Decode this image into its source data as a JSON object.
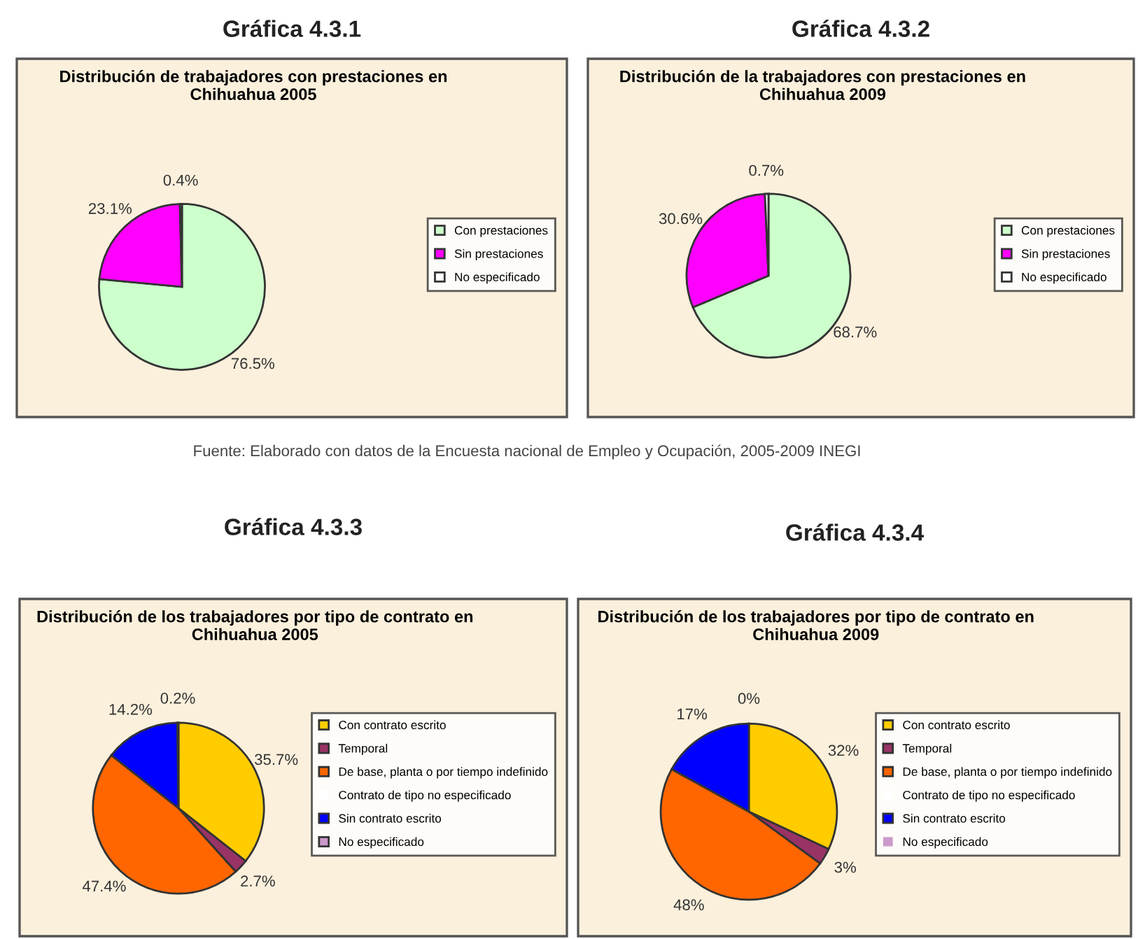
{
  "chart_data": [
    {
      "type": "pie",
      "title": "Gráfica 4.3.1",
      "subtitle": "Distribución de trabajadores con prestaciones en Chihuahua 2005",
      "categories": [
        "Con prestaciones",
        "Sin prestaciones",
        "No especificado"
      ],
      "values": [
        76.5,
        23.1,
        0.4
      ],
      "colors": [
        "#ccffcc",
        "#ff00ff",
        "#ffffff"
      ],
      "value_labels": [
        "76.5%",
        "23.1%",
        "0.4%"
      ],
      "legend": "right",
      "annotations": [
        "Fuente: Elaborado con datos de la Encuesta nacional de Empleo y Ocupación, 2005-2009 INEGI"
      ]
    },
    {
      "type": "pie",
      "title": "Gráfica 4.3.2",
      "subtitle": "Distribución de la trabajadores con prestaciones en Chihuahua 2009",
      "categories": [
        "Con prestaciones",
        "Sin prestaciones",
        "No especificado"
      ],
      "values": [
        68.7,
        30.6,
        0.7
      ],
      "colors": [
        "#ccffcc",
        "#ff00ff",
        "#ffffff"
      ],
      "value_labels": [
        "68.7%",
        "30.6%",
        "0.7%"
      ],
      "legend": "right"
    },
    {
      "type": "pie",
      "title": "Gráfica 4.3.3",
      "subtitle": "Distribución de los trabajadores por tipo de contrato en Chihuahua 2005",
      "categories": [
        "Con contrato escrito",
        "Temporal",
        "De base, planta o por tiempo indefinido",
        "Contrato de tipo no especificado",
        "Sin contrato escrito",
        "No especificado"
      ],
      "values": [
        35.7,
        2.7,
        47.4,
        0,
        14.2,
        0.2
      ],
      "colors": [
        "#ffcc00",
        "#993366",
        "#ff6600",
        "#ffffff",
        "#0000ff",
        "#cc99cc"
      ],
      "value_labels": [
        "35.7%",
        "2.7%",
        "47.4%",
        null,
        "14.2%",
        "0.2%"
      ],
      "legend": "right"
    },
    {
      "type": "pie",
      "title": "Gráfica 4.3.4",
      "subtitle": "Distribución de los trabajadores por tipo de contrato en Chihuahua 2009",
      "categories": [
        "Con contrato escrito",
        "Temporal",
        "De base, planta o por tiempo indefinido",
        "Contrato de tipo no especificado",
        "Sin contrato escrito",
        "No especificado"
      ],
      "values": [
        32,
        3,
        48,
        0,
        17,
        0
      ],
      "colors": [
        "#ffcc00",
        "#993366",
        "#ff6600",
        "#ffffff",
        "#0000ff",
        "#cc99cc"
      ],
      "value_labels": [
        "32%",
        "3%",
        "48%",
        null,
        "17%",
        "0%"
      ],
      "legend": "right"
    }
  ]
}
